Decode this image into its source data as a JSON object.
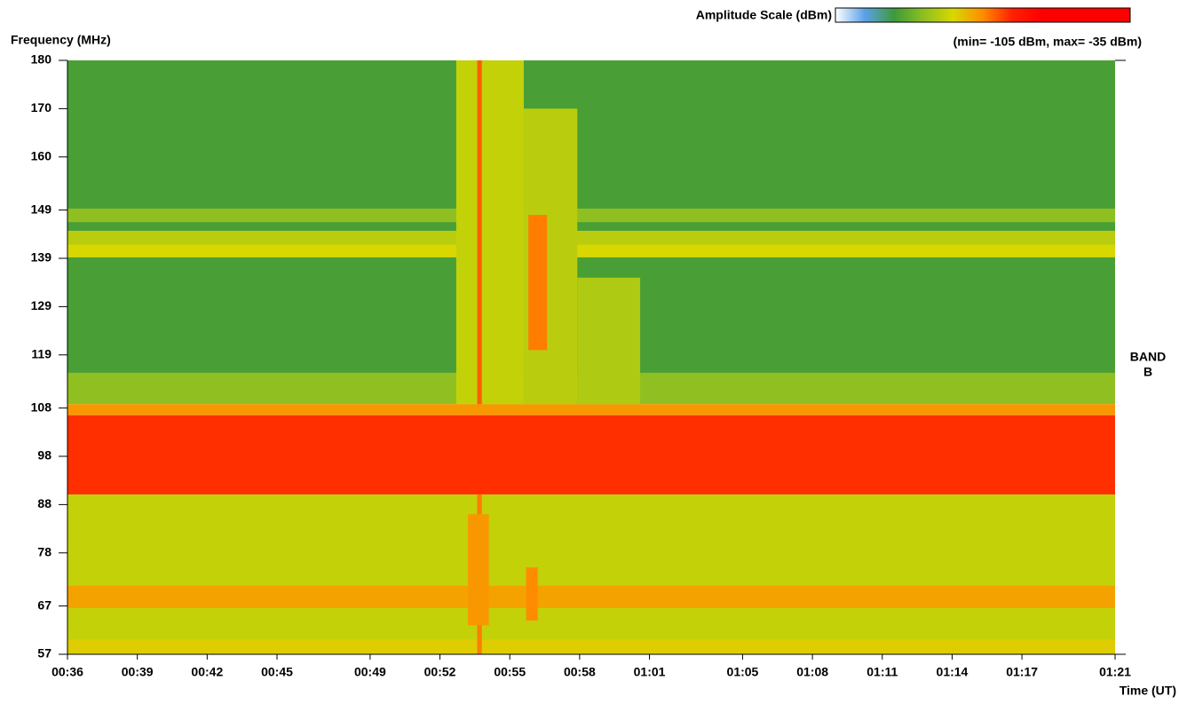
{
  "chart_data": {
    "type": "spectrogram",
    "xlabel": "Time (UT)",
    "ylabel": "Frequency (MHz)",
    "colorbar_title": "Amplitude Scale (dBm)",
    "colorbar_range_label": "(min=  -105 dBm, max=  -35 dBm)",
    "annotation": [
      "BAND",
      "B"
    ],
    "zlim": [
      -105,
      -35
    ],
    "colorscale": [
      "#ffffff",
      "#5aa0e8",
      "#3d9a3a",
      "#8fbf20",
      "#d8d800",
      "#ff8c00",
      "#ff2000",
      "#ff0000",
      "#ff0000",
      "#ff0000",
      "#ff0000"
    ],
    "xlim": [
      36,
      81
    ],
    "xticks": [
      {
        "value": 36,
        "label": "00:36"
      },
      {
        "value": 39,
        "label": "00:39"
      },
      {
        "value": 42,
        "label": "00:42"
      },
      {
        "value": 45,
        "label": "00:45"
      },
      {
        "value": 49,
        "label": "00:49"
      },
      {
        "value": 52,
        "label": "00:52"
      },
      {
        "value": 55,
        "label": "00:55"
      },
      {
        "value": 58,
        "label": "00:58"
      },
      {
        "value": 61,
        "label": "01:01"
      },
      {
        "value": 65,
        "label": "01:05"
      },
      {
        "value": 68,
        "label": "01:08"
      },
      {
        "value": 71,
        "label": "01:11"
      },
      {
        "value": 74,
        "label": "01:14"
      },
      {
        "value": 77,
        "label": "01:17"
      },
      {
        "value": 81,
        "label": "01:21"
      }
    ],
    "ylim": [
      57,
      180
    ],
    "yticks": [
      57,
      67,
      78,
      88,
      98,
      108,
      119,
      129,
      139,
      149,
      160,
      170,
      180
    ],
    "regions": [
      {
        "x": [
          36,
          81
        ],
        "y": [
          115,
          180
        ],
        "value": -90
      },
      {
        "x": [
          36,
          81
        ],
        "y": [
          146.5,
          149.3
        ],
        "value": -84
      },
      {
        "x": [
          36,
          81
        ],
        "y": [
          141.9,
          144.7
        ],
        "value": -80
      },
      {
        "x": [
          36,
          81
        ],
        "y": [
          139.2,
          141.9
        ],
        "value": -77
      },
      {
        "x": [
          36,
          81
        ],
        "y": [
          108.8,
          115.3
        ],
        "value": -84
      },
      {
        "x": [
          36,
          81
        ],
        "y": [
          106.5,
          108.8
        ],
        "value": -71
      },
      {
        "x": [
          36,
          81
        ],
        "y": [
          90.1,
          106.5
        ],
        "value": -64
      },
      {
        "x": [
          36,
          81
        ],
        "y": [
          57,
          90.1
        ],
        "value": -79
      },
      {
        "x": [
          36,
          81
        ],
        "y": [
          66.6,
          71.2
        ],
        "value": -72
      },
      {
        "x": [
          36,
          81
        ],
        "y": [
          57,
          60.1
        ],
        "value": -76
      },
      {
        "x": [
          52.7,
          55.6
        ],
        "y": [
          108.8,
          180
        ],
        "value": -79
      },
      {
        "x": [
          55.6,
          57.9
        ],
        "y": [
          108.8,
          170
        ],
        "value": -80
      },
      {
        "x": [
          57.9,
          60.6
        ],
        "y": [
          108.8,
          135
        ],
        "value": -81
      },
      {
        "x": [
          53.6,
          53.8
        ],
        "y": [
          108.8,
          180
        ],
        "value": -67
      },
      {
        "x": [
          53.6,
          53.8
        ],
        "y": [
          57,
          90.1
        ],
        "value": -69
      },
      {
        "x": [
          53.2,
          54.1
        ],
        "y": [
          63,
          86
        ],
        "value": -71
      },
      {
        "x": [
          55.7,
          56.2
        ],
        "y": [
          64,
          75
        ],
        "value": -70
      },
      {
        "x": [
          55.8,
          56.6
        ],
        "y": [
          120,
          148
        ],
        "value": -69
      }
    ]
  }
}
